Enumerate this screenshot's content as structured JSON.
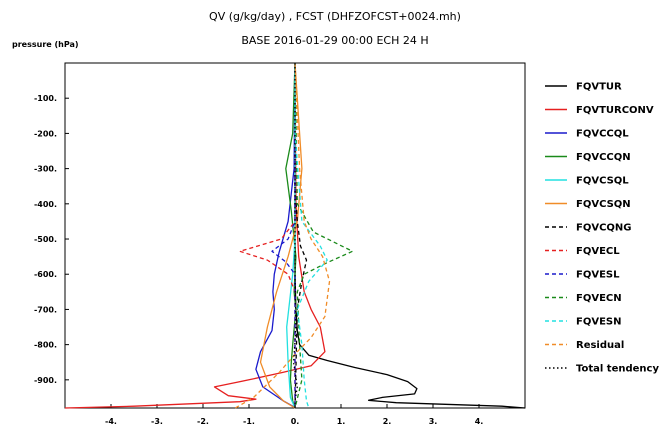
{
  "chart_data": {
    "type": "line",
    "title": "QV (g/kg/day) , FCST (DHFZOFCST+0024.mh)",
    "subtitle": "BASE 2016-01-29 00:00 ECH 24 H",
    "ylabel": "pressure (hPa)",
    "xlabel": "",
    "xlim": [
      -5,
      5
    ],
    "ylim": [
      0,
      980
    ],
    "y_inverted": true,
    "grid": false,
    "legend_position": "right",
    "x_ticks": [
      -4,
      -3,
      -2,
      -1,
      0,
      1,
      2,
      3,
      4
    ],
    "x_tick_labels": [
      "-4.",
      "-3.",
      "-2.",
      "-1.",
      "0.",
      "1.",
      "2.",
      "3.",
      "4."
    ],
    "y_ticks": [
      100,
      200,
      300,
      400,
      500,
      600,
      700,
      800,
      900
    ],
    "y_tick_labels": [
      "-100.",
      "-200.",
      "-300.",
      "-400.",
      "-500.",
      "-600.",
      "-700.",
      "-800.",
      "-900."
    ],
    "series": [
      {
        "name": "FQVTUR",
        "color": "#000000",
        "dash": "solid",
        "x": [
          0,
          0,
          0.02,
          0.05,
          0.1,
          0.3,
          0.7,
          1.3,
          2.0,
          2.45,
          2.65,
          2.6,
          1.9,
          1.6,
          2.2,
          4.5,
          5.0
        ],
        "y": [
          0,
          600,
          700,
          760,
          800,
          830,
          845,
          865,
          885,
          905,
          925,
          940,
          950,
          958,
          965,
          975,
          980
        ]
      },
      {
        "name": "FQVTURCONV",
        "color": "#e62020",
        "dash": "solid",
        "x": [
          0,
          0.02,
          0.08,
          0.2,
          0.35,
          0.55,
          0.65,
          0.35,
          -0.3,
          -1.0,
          -1.75,
          -1.45,
          -0.85,
          -1.2,
          -3.5,
          -5.0
        ],
        "y": [
          0,
          400,
          550,
          650,
          700,
          750,
          820,
          860,
          880,
          900,
          920,
          945,
          955,
          962,
          975,
          980
        ]
      },
      {
        "name": "FQVCCQL",
        "color": "#1a1acc",
        "dash": "solid",
        "x": [
          0,
          -0.02,
          -0.15,
          -0.35,
          -0.45,
          -0.48,
          -0.45,
          -0.5,
          -0.75,
          -0.85,
          -0.7,
          -0.25,
          -0.05,
          0
        ],
        "y": [
          0,
          300,
          450,
          540,
          600,
          650,
          700,
          760,
          820,
          870,
          920,
          960,
          975,
          980
        ]
      },
      {
        "name": "FQVCCQN",
        "color": "#1a8a1a",
        "dash": "solid",
        "x": [
          0,
          -0.05,
          -0.2,
          -0.08,
          0.02,
          -0.02,
          0.02,
          -0.05,
          -0.08,
          -0.1,
          -0.05,
          0
        ],
        "y": [
          0,
          200,
          300,
          420,
          550,
          650,
          700,
          800,
          850,
          900,
          960,
          980
        ]
      },
      {
        "name": "FQVCSQL",
        "color": "#22e0e0",
        "dash": "solid",
        "x": [
          0,
          0,
          -0.05,
          -0.12,
          -0.18,
          -0.15,
          -0.1,
          0
        ],
        "y": [
          0,
          500,
          600,
          680,
          750,
          850,
          950,
          980
        ]
      },
      {
        "name": "FQVCSQN",
        "color": "#f08c28",
        "dash": "solid",
        "x": [
          0,
          0.1,
          0.15,
          0.05,
          -0.15,
          -0.4,
          -0.6,
          -0.75,
          -0.55,
          -0.25,
          0
        ],
        "y": [
          0,
          200,
          300,
          450,
          550,
          650,
          750,
          850,
          920,
          960,
          980
        ]
      },
      {
        "name": "FQVCQNG",
        "color": "#000000",
        "dash": "dashed",
        "x": [
          0,
          0,
          0.05,
          0.12,
          0.25,
          0.15,
          0.05,
          0
        ],
        "y": [
          0,
          350,
          450,
          520,
          560,
          620,
          700,
          980
        ]
      },
      {
        "name": "FQVECL",
        "color": "#e62020",
        "dash": "dashed",
        "x": [
          0,
          0,
          -0.3,
          -1.2,
          -0.6,
          -0.15,
          0,
          0
        ],
        "y": [
          0,
          450,
          500,
          535,
          560,
          600,
          650,
          980
        ]
      },
      {
        "name": "FQVESL",
        "color": "#1a1acc",
        "dash": "dashed",
        "x": [
          0,
          0,
          -0.15,
          -0.5,
          -0.2,
          0,
          0
        ],
        "y": [
          0,
          450,
          500,
          535,
          565,
          600,
          980
        ]
      },
      {
        "name": "FQVECN",
        "color": "#1a8a1a",
        "dash": "dashed",
        "x": [
          0,
          0.05,
          0.4,
          1.25,
          0.65,
          0.2,
          0.05,
          0.1,
          0.15,
          0
        ],
        "y": [
          0,
          400,
          480,
          535,
          570,
          600,
          650,
          800,
          900,
          980
        ]
      },
      {
        "name": "FQVESN",
        "color": "#22e0e0",
        "dash": "dashed",
        "x": [
          0,
          0,
          0.15,
          0.55,
          0.7,
          0.3,
          0.05,
          0.15,
          0.2,
          0.25,
          0.3
        ],
        "y": [
          0,
          200,
          450,
          520,
          560,
          620,
          700,
          800,
          900,
          960,
          980
        ]
      },
      {
        "name": "Residual",
        "color": "#f08c28",
        "dash": "dashed",
        "x": [
          0,
          0.1,
          0.2,
          0.35,
          0.6,
          0.75,
          0.65,
          0.35,
          0.05,
          -0.35,
          -0.9,
          -1.3
        ],
        "y": [
          0,
          300,
          450,
          500,
          550,
          620,
          720,
          780,
          820,
          880,
          950,
          980
        ]
      },
      {
        "name": "Total tendency",
        "color": "#000000",
        "dash": "dotted",
        "x": [
          0,
          0,
          0.02,
          -0.03,
          0.05,
          0,
          0
        ],
        "y": [
          0,
          600,
          750,
          850,
          920,
          960,
          980
        ]
      }
    ]
  }
}
